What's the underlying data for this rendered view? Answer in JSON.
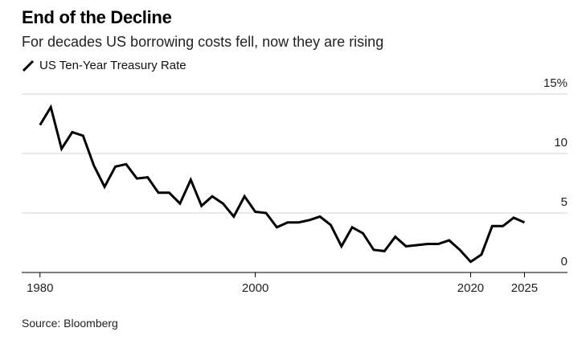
{
  "title": "End of the Decline",
  "subtitle": "For decades US borrowing costs fell, now they are rising",
  "source": "Source: Bloomberg",
  "chart_data": {
    "type": "line",
    "legend": [
      "US Ten-Year Treasury Rate"
    ],
    "x_ticks": [
      "1980",
      "2000",
      "2020",
      "2025"
    ],
    "y_ticks": [
      "15%",
      "10",
      "5",
      "0"
    ],
    "ylim": [
      0,
      15
    ],
    "xlim": [
      1978.3,
      2029
    ],
    "grid": true,
    "series": [
      {
        "name": "US Ten-Year Treasury Rate",
        "color": "#000000",
        "x": [
          1980,
          1981,
          1982,
          1983,
          1984,
          1985,
          1986,
          1987,
          1988,
          1989,
          1990,
          1991,
          1992,
          1993,
          1994,
          1995,
          1996,
          1997,
          1998,
          1999,
          2000,
          2001,
          2002,
          2003,
          2004,
          2005,
          2006,
          2007,
          2008,
          2009,
          2010,
          2011,
          2012,
          2013,
          2014,
          2015,
          2016,
          2017,
          2018,
          2019,
          2020,
          2021,
          2022,
          2023,
          2024,
          2025
        ],
        "values": [
          12.4,
          13.9,
          10.4,
          11.8,
          11.5,
          9.0,
          7.2,
          8.9,
          9.1,
          7.9,
          8.0,
          6.7,
          6.7,
          5.8,
          7.8,
          5.6,
          6.4,
          5.8,
          4.7,
          6.4,
          5.1,
          5.0,
          3.8,
          4.2,
          4.2,
          4.4,
          4.7,
          4.0,
          2.2,
          3.8,
          3.3,
          1.9,
          1.8,
          3.0,
          2.2,
          2.3,
          2.4,
          2.4,
          2.7,
          1.9,
          0.9,
          1.5,
          3.9,
          3.9,
          4.6,
          4.2
        ]
      }
    ]
  }
}
